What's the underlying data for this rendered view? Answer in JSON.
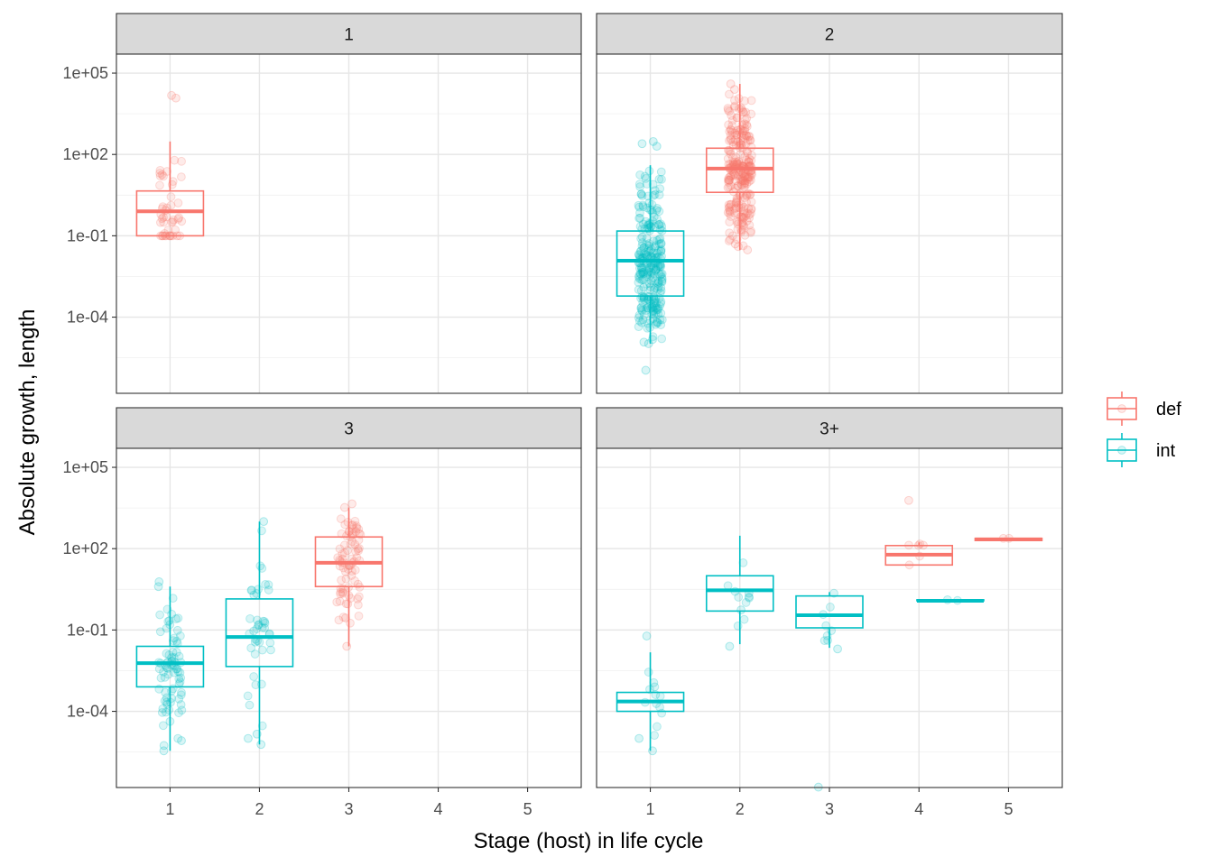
{
  "chart_data": {
    "type": "boxplot",
    "facet_by": "number of hosts in life cycle",
    "xlabel": "Stage (host) in life cycle",
    "ylabel": "Absolute growth, length",
    "y_scale": "log10",
    "ylim": [
      1.55e-07,
      501187
    ],
    "y_ticks": [
      0.0001,
      0.1,
      100.0,
      100000.0
    ],
    "y_tick_labels": [
      "1e-04",
      "1e-01",
      "1e+02",
      "1e+05"
    ],
    "x_ticks": [
      1,
      2,
      3,
      4,
      5
    ],
    "x_tick_labels": [
      "1",
      "2",
      "3",
      "4",
      "5"
    ],
    "grid": true,
    "legend_position": "right",
    "legend": [
      {
        "key": "def",
        "label": "def",
        "color": "#F8766D"
      },
      {
        "key": "int",
        "label": "int",
        "color": "#00BFC4"
      }
    ],
    "panels": [
      {
        "label": "1",
        "boxes": [
          {
            "stage": 1,
            "group": "def",
            "min": 0.1,
            "q1": 0.1,
            "median": 0.8,
            "q3": 4.5,
            "max": 300,
            "n": 45,
            "outliers": [
              12000,
              15000
            ]
          }
        ]
      },
      {
        "label": "2",
        "boxes": [
          {
            "stage": 1,
            "group": "int",
            "min": 1.05e-05,
            "q1": 0.0006,
            "median": 0.012,
            "q3": 0.15,
            "max": 40,
            "n": 260,
            "outliers": [
              1.1e-06,
              1.05e-05,
              1.2e-05,
              1.5e-05,
              200,
              250,
              300
            ]
          },
          {
            "stage": 2,
            "group": "def",
            "min": 0.03,
            "q1": 4,
            "median": 30,
            "q3": 170,
            "max": 40000,
            "n": 260,
            "outliers": [
              0.03,
              0.04,
              0.05,
              25000,
              40000
            ]
          }
        ]
      },
      {
        "label": "3",
        "boxes": [
          {
            "stage": 1,
            "group": "int",
            "min": 3.5e-06,
            "q1": 0.0008,
            "median": 0.006,
            "q3": 0.025,
            "max": 4,
            "n": 75,
            "outliers": [
              3.5e-06,
              5.5e-06,
              8.3e-06,
              4,
              6
            ]
          },
          {
            "stage": 2,
            "group": "int",
            "min": 6e-06,
            "q1": 0.0045,
            "median": 0.055,
            "q3": 1.4,
            "max": 1000,
            "n": 40,
            "outliers": [
              6e-06,
              1e-05,
              1.45e-05,
              1000
            ]
          },
          {
            "stage": 3,
            "group": "def",
            "min": 0.025,
            "q1": 4,
            "median": 30,
            "q3": 270,
            "max": 3300,
            "n": 80,
            "outliers": [
              0.025,
              3300,
              4500
            ]
          }
        ]
      },
      {
        "label": "3+",
        "boxes": [
          {
            "stage": 1,
            "group": "int",
            "min": 3.5e-06,
            "q1": 0.0001,
            "median": 0.00023,
            "q3": 0.0005,
            "max": 0.015,
            "n": 12,
            "outliers": [
              3.5e-06,
              1e-05,
              0.06
            ]
          },
          {
            "stage": 2,
            "group": "int",
            "min": 0.03,
            "q1": 0.5,
            "median": 2.9,
            "q3": 10,
            "max": 300,
            "n": 10,
            "outliers": [
              0.025,
              0.55
            ]
          },
          {
            "stage": 3,
            "group": "int",
            "min": 0.022,
            "q1": 0.12,
            "median": 0.35,
            "q3": 1.8,
            "max": 2.5,
            "n": 8,
            "outliers": [
              0.02,
              1.6e-07
            ]
          },
          {
            "stage": 4,
            "group": "def",
            "min": 25,
            "q1": 25,
            "median": 60,
            "q3": 130,
            "max": 170,
            "n": 6,
            "outliers": [
              6000
            ]
          },
          {
            "stage": 4.35,
            "group": "int",
            "min": 1.2,
            "q1": 1.2,
            "median": 1.2,
            "q3": 1.3,
            "max": 1.3,
            "n": 2,
            "outliers": []
          },
          {
            "stage": 5,
            "group": "def",
            "min": 200,
            "q1": 200,
            "median": 220,
            "q3": 240,
            "max": 240,
            "n": 2,
            "outliers": []
          }
        ]
      }
    ]
  }
}
